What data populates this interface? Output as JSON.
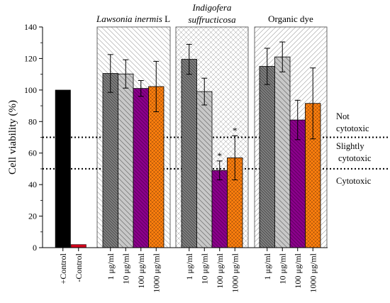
{
  "chart_data": {
    "type": "bar",
    "ylabel": "Cell viability (%)",
    "ylim": [
      0,
      140
    ],
    "yticks": [
      0,
      20,
      40,
      60,
      80,
      100,
      120,
      140
    ],
    "grid": false,
    "controls": [
      {
        "label": "+Control",
        "value": 100,
        "color": "#000000"
      },
      {
        "label": "-Control",
        "value": 2,
        "color": "#d0021b"
      }
    ],
    "groups": [
      {
        "name_italic": "Lawsonia inermis",
        "name_suffix": " L",
        "categories": [
          "1 μg/ml",
          "10 μg/ml",
          "100 μg/ml",
          "1000 μg/ml"
        ],
        "values": [
          110.5,
          110.2,
          101,
          102.2
        ],
        "errors": [
          12,
          9,
          5,
          16
        ],
        "significant": [
          false,
          false,
          false,
          false
        ]
      },
      {
        "name_italic_lines": [
          "Indigofera",
          "suffructicosa"
        ],
        "categories": [
          "1 μg/ml",
          "10 μg/ml",
          "100 μg/ml",
          "1000 μg/ml"
        ],
        "values": [
          119.5,
          99,
          49,
          57
        ],
        "errors": [
          9.5,
          8.5,
          6,
          14
        ],
        "significant": [
          false,
          false,
          true,
          true
        ]
      },
      {
        "name": "Organic dye",
        "categories": [
          "1 μg/ml",
          "10 μg/ml",
          "100 μg/ml",
          "1000 μg/ml"
        ],
        "values": [
          115,
          121,
          81,
          91.5
        ],
        "errors": [
          11.5,
          9.5,
          12.5,
          22.5
        ],
        "significant": [
          false,
          false,
          false,
          false
        ]
      }
    ],
    "bar_colors": [
      "#808080",
      "#c8c8c8",
      "#8b008b",
      "#ff7f0e"
    ],
    "thresholds": [
      70,
      50
    ],
    "zone_labels": [
      {
        "lines": [
          "Not",
          "cytotoxic"
        ]
      },
      {
        "lines": [
          "Slightly",
          "cytotoxic"
        ]
      },
      {
        "lines": [
          "Cytotoxic"
        ]
      }
    ],
    "significance_marker": "*"
  }
}
